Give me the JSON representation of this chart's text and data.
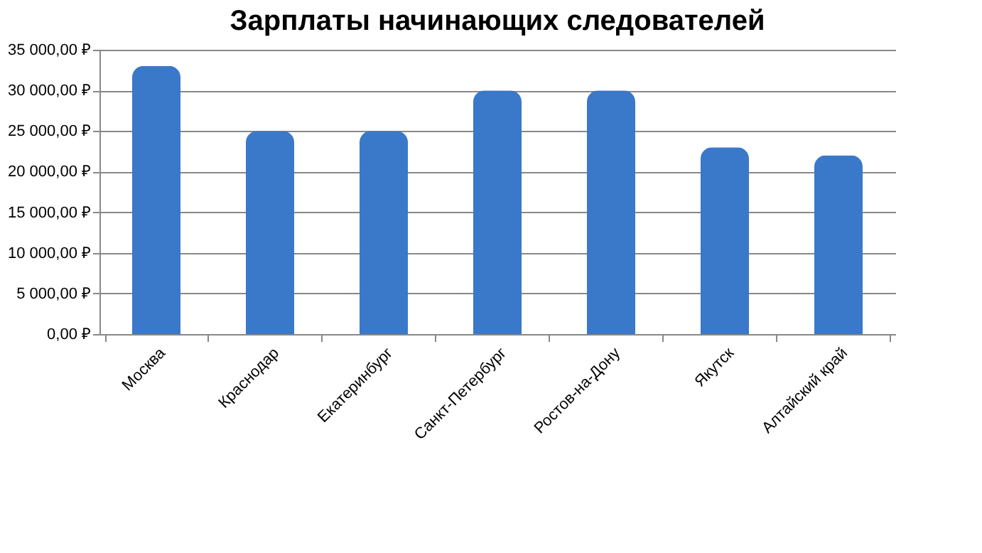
{
  "chart_data": {
    "type": "bar",
    "title": "Зарплаты начинающих следователей",
    "categories": [
      "Москва",
      "Краснодар",
      "Екатеринбург",
      "Санкт-Петербург",
      "Ростов-на-Дону",
      "Якутск",
      "Алтайский край"
    ],
    "values": [
      33000,
      25000,
      25000,
      30000,
      30000,
      23000,
      22000
    ],
    "color": "#3a78c9",
    "ylim": [
      0,
      35000
    ],
    "yticks": [
      {
        "value": 0,
        "label": "0,00 ₽"
      },
      {
        "value": 5000,
        "label": "5 000,00 ₽"
      },
      {
        "value": 10000,
        "label": "10 000,00 ₽"
      },
      {
        "value": 15000,
        "label": "15 000,00 ₽"
      },
      {
        "value": 20000,
        "label": "20 000,00 ₽"
      },
      {
        "value": 25000,
        "label": "25 000,00 ₽"
      },
      {
        "value": 30000,
        "label": "30 000,00 ₽"
      },
      {
        "value": 35000,
        "label": "35 000,00 ₽"
      }
    ],
    "grid": "y"
  }
}
